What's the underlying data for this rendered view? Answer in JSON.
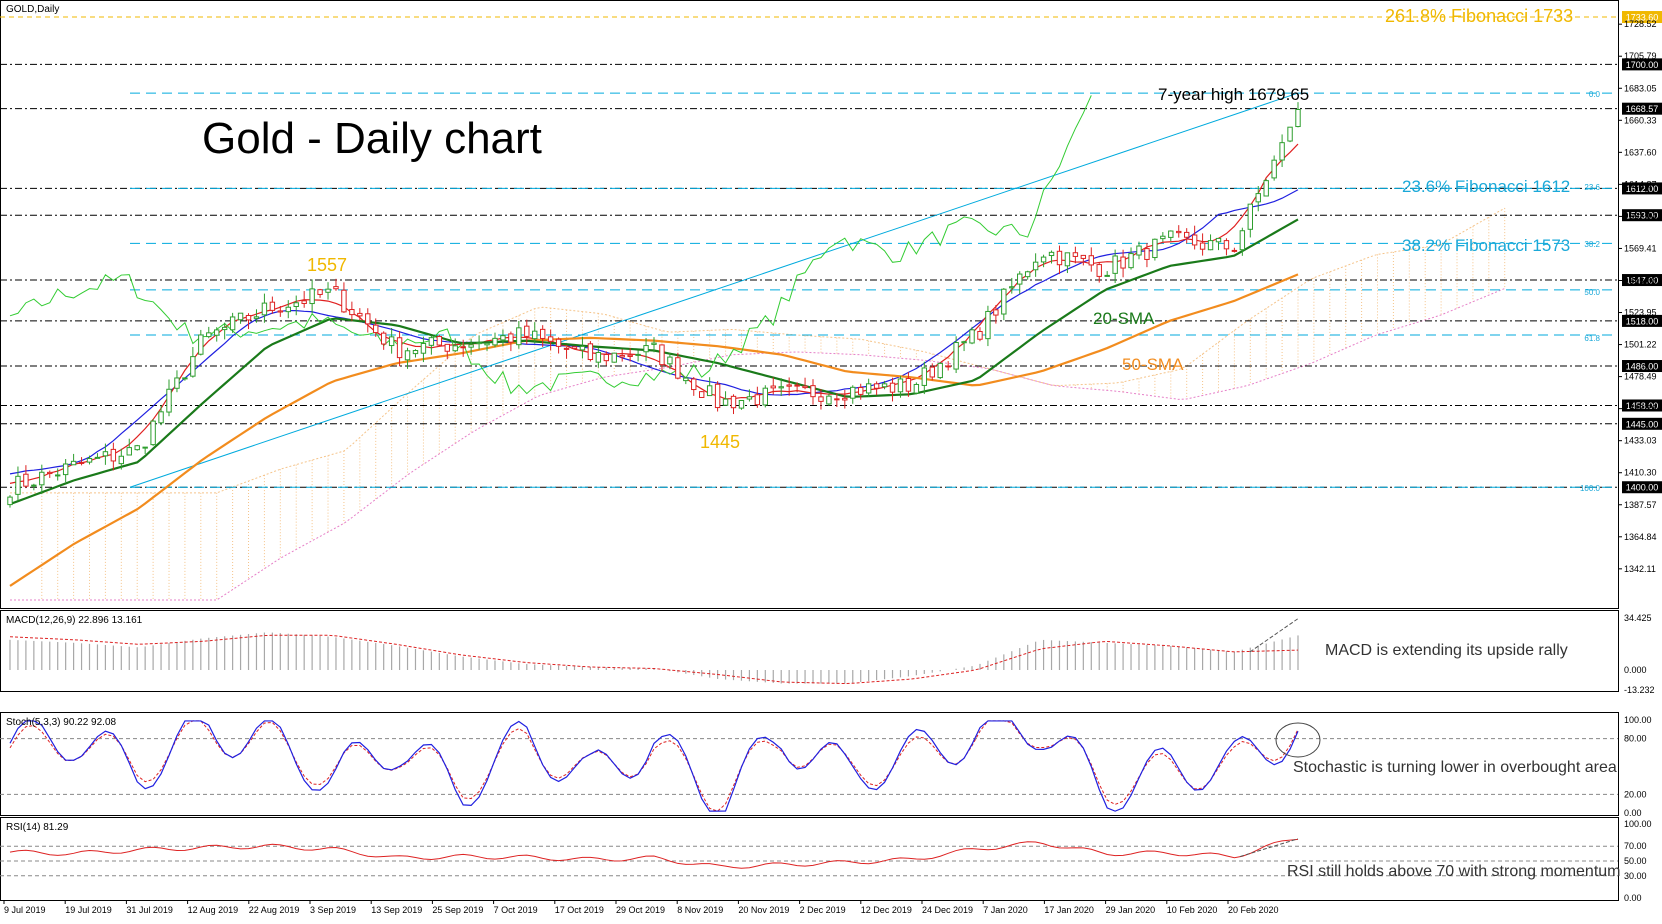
{
  "window": {
    "symbol_title": "GOLD,Daily",
    "macd_title": "MACD(12,26,9) 22.896 13.161",
    "stoch_title": "Stoch(5,3,3) 90.22 92.08",
    "rsi_title": "RSI(14) 81.29"
  },
  "annotations": {
    "main_title": "Gold - Daily chart",
    "seven_year_high": "7-year high 1679.65",
    "fib_261": "261.8% Fibonacci 1733",
    "fib_236": "23.6% Fibonacci 1612",
    "fib_382": "38.2% Fibonacci 1573",
    "low_1557": "1557",
    "low_1445": "1445",
    "sma20": "20-SMA",
    "sma50": "50-SMA",
    "macd_note": "MACD is extending its upside rally",
    "stoch_note": "Stochastic is turning lower in overbought area",
    "rsi_note": "RSI still holds above 70 with strong momentum"
  },
  "fib_small_labels": [
    "0.0",
    "23.6",
    "38.2",
    "50.0",
    "61.8",
    "100.0"
  ],
  "price_axis": {
    "ticks": [
      "1728.52",
      "1705.79",
      "1683.05",
      "1660.33",
      "1637.60",
      "1614.87",
      "1592.14",
      "1569.41",
      "1546.68",
      "1523.95",
      "1501.22",
      "1478.49",
      "1455.76",
      "1433.03",
      "1410.30",
      "1387.57",
      "1364.84",
      "1342.11"
    ],
    "ylim": [
      1320,
      1740
    ]
  },
  "level_boxes": [
    {
      "label": "1733.60",
      "value": 1733.6
    },
    {
      "label": "1700.00",
      "value": 1700.0
    },
    {
      "label": "1668.57",
      "value": 1668.57
    },
    {
      "label": "1612.00",
      "value": 1612.0
    },
    {
      "label": "1593.00",
      "value": 1593.0
    },
    {
      "label": "1547.00",
      "value": 1547.0
    },
    {
      "label": "1518.00",
      "value": 1518.0
    },
    {
      "label": "1486.00",
      "value": 1486.0
    },
    {
      "label": "1458.00",
      "value": 1458.0
    },
    {
      "label": "1445.00",
      "value": 1445.0
    },
    {
      "label": "1400.00",
      "value": 1400.0
    }
  ],
  "macd_axis": {
    "ticks": [
      "34.425",
      "0.000",
      "-13.232"
    ]
  },
  "stoch_axis": {
    "ticks": [
      "100.00",
      "80.00",
      "20.00",
      "0.00"
    ]
  },
  "rsi_axis": {
    "ticks": [
      "100.00",
      "70.00",
      "50.00",
      "30.00",
      "0.00"
    ]
  },
  "date_labels": [
    "9 Jul 2019",
    "19 Jul 2019",
    "31 Jul 2019",
    "12 Aug 2019",
    "22 Aug 2019",
    "3 Sep 2019",
    "13 Sep 2019",
    "25 Sep 2019",
    "7 Oct 2019",
    "17 Oct 2019",
    "29 Oct 2019",
    "8 Nov 2019",
    "20 Nov 2019",
    "2 Dec 2019",
    "12 Dec 2019",
    "24 Dec 2019",
    "7 Jan 2020",
    "17 Jan 2020",
    "29 Jan 2020",
    "10 Feb 2020",
    "20 Feb 2020"
  ],
  "colors": {
    "bull": "#2e9e2e",
    "bear": "#dd2222",
    "sma20": "#1a7a1a",
    "sma50": "#f28c1e",
    "tenkan": "#e02020",
    "kijun": "#2020e0",
    "chikou": "#33cc33",
    "fib": "#00aadd",
    "fib_text": "#1aa8d8",
    "gold_text": "#f0b800",
    "ichimoku_up": "#f5c48a",
    "ichimoku_down": "#e680c8",
    "macd_hist": "#a8a8a8",
    "macd_signal": "#dd2222",
    "stoch_main": "#2020e0",
    "stoch_signal": "#dd2222",
    "rsi": "#dd2222"
  },
  "chart_data": {
    "type": "candlestick",
    "title": "Gold - Daily chart",
    "symbol": "GOLD,Daily",
    "dates": [
      "9 Jul 2019",
      "19 Jul 2019",
      "31 Jul 2019",
      "12 Aug 2019",
      "22 Aug 2019",
      "3 Sep 2019",
      "13 Sep 2019",
      "25 Sep 2019",
      "7 Oct 2019",
      "17 Oct 2019",
      "29 Oct 2019",
      "8 Nov 2019",
      "20 Nov 2019",
      "2 Dec 2019",
      "12 Dec 2019",
      "24 Dec 2019",
      "7 Jan 2020",
      "17 Jan 2020",
      "29 Jan 2020",
      "10 Feb 2020",
      "20 Feb 2020"
    ],
    "close": [
      1400,
      1415,
      1427,
      1505,
      1527,
      1538,
      1498,
      1502,
      1508,
      1492,
      1497,
      1460,
      1466,
      1469,
      1472,
      1508,
      1568,
      1555,
      1575,
      1570,
      1668
    ],
    "sma20": [
      1388,
      1405,
      1418,
      1460,
      1500,
      1520,
      1515,
      1502,
      1504,
      1500,
      1497,
      1488,
      1476,
      1464,
      1466,
      1476,
      1510,
      1540,
      1557,
      1564,
      1590
    ],
    "sma50": [
      1330,
      1360,
      1385,
      1420,
      1450,
      1475,
      1488,
      1495,
      1504,
      1506,
      1504,
      1500,
      1494,
      1482,
      1478,
      1472,
      1482,
      1498,
      1518,
      1532,
      1551
    ],
    "ylim": [
      1320,
      1740
    ],
    "macd": [
      20,
      18,
      15,
      21,
      25,
      22,
      16,
      9,
      4,
      2,
      1,
      -6,
      -9,
      -9,
      -4,
      3,
      20,
      18,
      16,
      12,
      22.896
    ],
    "macd_signal": [
      22,
      20,
      17,
      19,
      23,
      23,
      17,
      10,
      5,
      2,
      1,
      -3,
      -8,
      -9,
      -6,
      0,
      14,
      19,
      16,
      12,
      13.161
    ],
    "stoch_k": [
      75,
      82,
      45,
      90,
      80,
      38,
      75,
      25,
      80,
      38,
      76,
      12,
      82,
      42,
      62,
      85,
      95,
      22,
      48,
      52,
      90.22
    ],
    "stoch_d": [
      70,
      78,
      50,
      85,
      78,
      42,
      70,
      30,
      75,
      42,
      70,
      18,
      78,
      46,
      58,
      82,
      93,
      28,
      45,
      50,
      92.08
    ],
    "rsi": [
      62,
      60,
      65,
      68,
      70,
      66,
      54,
      56,
      55,
      52,
      54,
      42,
      45,
      48,
      52,
      66,
      75,
      60,
      61,
      56,
      81.29
    ]
  }
}
